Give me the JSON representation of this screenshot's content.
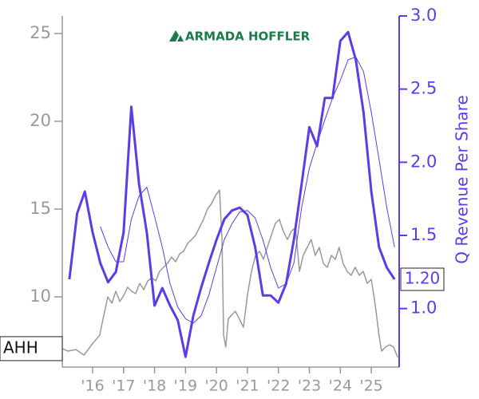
{
  "chart_data": {
    "type": "line",
    "logo": "ARMADA HOFFLER",
    "y2label": "Q Revenue Per Share",
    "xlim": [
      2015.02,
      2025.9
    ],
    "xticks": [
      {
        "value": 2016,
        "label": "'16"
      },
      {
        "value": 2017,
        "label": "'17"
      },
      {
        "value": 2018,
        "label": "'18"
      },
      {
        "value": 2019,
        "label": "'19"
      },
      {
        "value": 2020,
        "label": "'20"
      },
      {
        "value": 2021,
        "label": "'21"
      },
      {
        "value": 2022,
        "label": "'22"
      },
      {
        "value": 2023,
        "label": "'23"
      },
      {
        "value": 2024,
        "label": "'24"
      },
      {
        "value": 2025,
        "label": "'25"
      }
    ],
    "ylim": [
      6,
      26
    ],
    "yticks": [
      10,
      15,
      20,
      25
    ],
    "y2lim": [
      0.6,
      3.0
    ],
    "y2ticks": [
      {
        "value": 1,
        "label": "1.0"
      },
      1.5,
      {
        "value": 2,
        "label": "2.0"
      },
      2.5,
      {
        "value": 3,
        "label": "3.0"
      }
    ],
    "series": [
      {
        "name": "AHH",
        "color": "#999999",
        "axis": "y",
        "x": [
          2015.02,
          2015.2,
          2015.46,
          2015.72,
          2015.97,
          2016.23,
          2016.36,
          2016.49,
          2016.62,
          2016.75,
          2016.88,
          2017.01,
          2017.13,
          2017.26,
          2017.39,
          2017.52,
          2017.65,
          2017.78,
          2017.91,
          2018.04,
          2018.16,
          2018.29,
          2018.42,
          2018.55,
          2018.68,
          2018.81,
          2018.94,
          2019.07,
          2019.2,
          2019.32,
          2019.45,
          2019.58,
          2019.71,
          2019.84,
          2019.97,
          2020.1,
          2020.18,
          2020.23,
          2020.3,
          2020.38,
          2020.48,
          2020.61,
          2020.74,
          2020.87,
          2021.0,
          2021.13,
          2021.26,
          2021.39,
          2021.52,
          2021.64,
          2021.77,
          2021.9,
          2022.03,
          2022.16,
          2022.29,
          2022.42,
          2022.55,
          2022.68,
          2022.8,
          2022.93,
          2023.06,
          2023.19,
          2023.32,
          2023.45,
          2023.58,
          2023.71,
          2023.84,
          2023.96,
          2024.09,
          2024.22,
          2024.35,
          2024.48,
          2024.61,
          2024.74,
          2024.87,
          2025.0,
          2025.12,
          2025.25,
          2025.33,
          2025.46,
          2025.59,
          2025.72,
          2025.85
        ],
        "values": [
          7.05,
          6.91,
          7.0,
          6.68,
          7.27,
          7.82,
          8.95,
          10.0,
          9.64,
          10.32,
          9.73,
          10.09,
          10.55,
          10.32,
          10.18,
          10.77,
          10.41,
          10.91,
          11.09,
          10.91,
          11.45,
          11.68,
          11.91,
          12.27,
          12.0,
          12.45,
          12.59,
          13.05,
          13.27,
          13.5,
          13.95,
          14.41,
          15.0,
          15.32,
          15.77,
          16.09,
          13.27,
          7.82,
          7.14,
          8.73,
          8.95,
          9.18,
          8.73,
          8.27,
          10.09,
          11.45,
          12.36,
          12.59,
          12.14,
          12.82,
          13.5,
          14.18,
          14.41,
          13.73,
          13.27,
          13.73,
          13.95,
          11.45,
          12.36,
          12.82,
          13.27,
          12.36,
          12.82,
          11.91,
          11.68,
          12.36,
          12.14,
          12.82,
          11.91,
          11.45,
          11.23,
          11.68,
          11.23,
          11.45,
          10.77,
          11.0,
          9.64,
          7.82,
          6.91,
          7.14,
          7.27,
          7.14,
          6.55
        ]
      },
      {
        "color": "#5b3ce8",
        "axis": "y2",
        "width": 3,
        "x": [
          2015.25,
          2015.5,
          2015.75,
          2016.0,
          2016.25,
          2016.5,
          2016.75,
          2017.0,
          2017.25,
          2017.5,
          2017.75,
          2018.0,
          2018.25,
          2018.5,
          2018.75,
          2019.0,
          2019.25,
          2019.5,
          2019.75,
          2020.0,
          2020.25,
          2020.5,
          2020.75,
          2021.0,
          2021.25,
          2021.5,
          2021.75,
          2022.0,
          2022.25,
          2022.5,
          2022.75,
          2023.0,
          2023.25,
          2023.5,
          2023.75,
          2024.0,
          2024.25,
          2024.5,
          2024.75,
          2025.0,
          2025.25,
          2025.5,
          2025.75
        ],
        "values": [
          1.2,
          1.65,
          1.8,
          1.52,
          1.31,
          1.18,
          1.25,
          1.52,
          2.38,
          1.85,
          1.52,
          1.02,
          1.14,
          1.02,
          0.92,
          0.67,
          0.95,
          1.14,
          1.31,
          1.47,
          1.61,
          1.67,
          1.69,
          1.64,
          1.42,
          1.09,
          1.09,
          1.04,
          1.17,
          1.47,
          1.85,
          2.24,
          2.11,
          2.44,
          2.44,
          2.83,
          2.89,
          2.7,
          2.34,
          1.8,
          1.42,
          1.28,
          1.2
        ],
        "value_labels": [
          null,
          null,
          null,
          null,
          null,
          null,
          null,
          null,
          null,
          null,
          null,
          null,
          null,
          null,
          null,
          null,
          null,
          null,
          null,
          null,
          null,
          null,
          null,
          null,
          null,
          null,
          null,
          null,
          null,
          null,
          null,
          null,
          null,
          null,
          null,
          null,
          null,
          null,
          null,
          null,
          null,
          null,
          "1.20"
        ]
      },
      {
        "color": "#5b3ce8",
        "axis": "y2",
        "width": 1,
        "x": [
          2016.25,
          2016.5,
          2016.75,
          2017.0,
          2017.25,
          2017.5,
          2017.75,
          2018.0,
          2018.25,
          2018.5,
          2018.75,
          2019.0,
          2019.25,
          2019.5,
          2019.75,
          2020.0,
          2020.25,
          2020.5,
          2020.75,
          2021.0,
          2021.25,
          2021.5,
          2021.75,
          2022.0,
          2022.25,
          2022.5,
          2022.75,
          2023.0,
          2023.25,
          2023.5,
          2023.75,
          2024.0,
          2024.25,
          2024.5,
          2024.75,
          2025.0,
          2025.25,
          2025.5,
          2025.75
        ],
        "values": [
          1.56,
          1.42,
          1.32,
          1.32,
          1.61,
          1.77,
          1.83,
          1.63,
          1.42,
          1.17,
          1.01,
          0.93,
          0.9,
          0.95,
          1.09,
          1.28,
          1.47,
          1.58,
          1.66,
          1.67,
          1.62,
          1.47,
          1.28,
          1.14,
          1.17,
          1.31,
          1.69,
          1.96,
          2.13,
          2.29,
          2.44,
          2.56,
          2.7,
          2.72,
          2.62,
          2.34,
          2.02,
          1.69,
          1.42
        ]
      }
    ]
  }
}
